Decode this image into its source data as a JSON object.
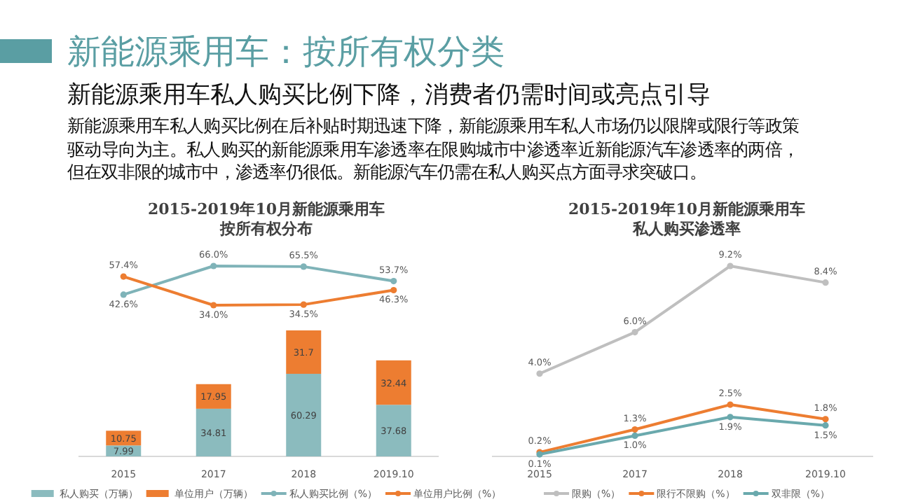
{
  "chart_data": [
    {
      "type": "other",
      "title": "新能源乘用车：按所有权分类",
      "subtitle": "新能源乘用车私人购买比例下降，消费者仍需时间或亮点引导",
      "annotations": [
        "新能源乘用车私人购买比例在后补贴时期迅速下降，新能源乘用车私人市场仍以限牌或限行等政策驱动导向为主。私人购买的新能源乘用车渗透率在限购城市中渗透率近新能源汽车渗透率的两倍，但在双非限的城市中，渗透率仍很低。新能源汽车仍需在私人购买点方面寻求突破口。"
      ]
    },
    {
      "type": "bar",
      "categories": [
        "2015",
        "2017",
        "2018",
        "2019.10"
      ],
      "stacked": true,
      "legend": "bottom",
      "series": [
        {
          "name": "私人购买（万辆）",
          "color": "#8bbbbe",
          "values": [
            7.99,
            34.81,
            60.29,
            37.68
          ],
          "value_labels": [
            "7.99",
            "34.81",
            "60.29",
            "37.68"
          ]
        },
        {
          "name": "单位用户（万辆）",
          "color": "#ed7d31",
          "values": [
            10.75,
            17.95,
            31.7,
            32.44
          ],
          "value_labels": [
            "10.75",
            "17.95",
            "31.7",
            "32.44"
          ]
        }
      ]
    },
    {
      "type": "line",
      "title": "2015-2019年10月新能源乘用车按所有权分布",
      "categories": [
        null,
        null,
        null,
        null
      ],
      "legend": "bottom",
      "marker": "circle",
      "series": [
        {
          "name": "私人购买比例（%）",
          "color": "#7fb3b8",
          "values": [
            42.6,
            66.0,
            65.5,
            53.7
          ],
          "value_labels": [
            "42.6%",
            "66.0%",
            "65.5%",
            "53.7%"
          ]
        },
        {
          "name": "单位用户比例（%）",
          "color": "#ed7d31",
          "values": [
            57.4,
            34.0,
            34.5,
            46.3
          ],
          "value_labels": [
            "57.4%",
            "34.0%",
            "34.5%",
            "46.3%"
          ]
        }
      ]
    },
    {
      "type": "line",
      "title": "2015-2019年10月新能源乘用车私人购买渗透率",
      "categories": [
        "2015",
        "2017",
        "2018",
        "2019.10"
      ],
      "legend": "bottom",
      "marker": "circle",
      "series": [
        {
          "name": "限购（%）",
          "color": "#bfbfbf",
          "values": [
            4.0,
            6.0,
            9.2,
            8.4
          ],
          "value_labels": [
            "4.0%",
            "6.0%",
            "9.2%",
            "8.4%"
          ]
        },
        {
          "name": "限行不限购（%）",
          "color": "#ed7d31",
          "values": [
            0.2,
            1.3,
            2.5,
            1.8
          ],
          "value_labels": [
            "0.2%",
            "1.3%",
            "2.5%",
            "1.8%"
          ]
        },
        {
          "name": "双非限（%）",
          "color": "#6aa9ad",
          "values": [
            0.1,
            1.0,
            1.9,
            1.5
          ],
          "value_labels": [
            "0.1%",
            "1.0%",
            "1.9%",
            "1.5%"
          ]
        }
      ]
    }
  ]
}
